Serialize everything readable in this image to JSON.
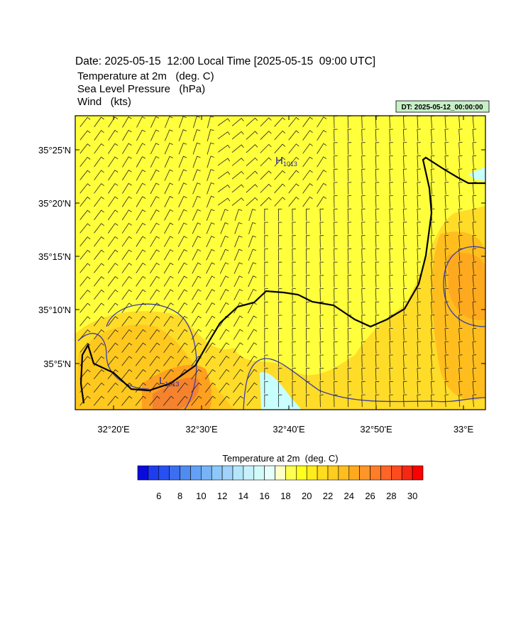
{
  "header": {
    "date": "Date: 2025-05-15  12:00 Local Time [2025-05-15  09:00 UTC]",
    "fields": [
      "Temperature at 2m   (deg. C)",
      "Sea Level Pressure   (hPa)",
      "Wind   (kts)"
    ],
    "dt": "DT: 2025-05-12_00:00:00"
  },
  "map": {
    "lat_labels": [
      "35°25'N",
      "35°20'N",
      "35°15'N",
      "35°10'N",
      "35°5'N"
    ],
    "lon_labels": [
      "32°20'E",
      "32°30'E",
      "32°40'E",
      "32°50'E",
      "33°E"
    ],
    "pressure_centers": [
      {
        "letter": "H",
        "value": "1013"
      },
      {
        "letter": "L",
        "value": "1013"
      }
    ]
  },
  "colorbar": {
    "title": "Temperature at 2m  (deg. C)",
    "labels": [
      6,
      8,
      10,
      12,
      14,
      16,
      18,
      20,
      22,
      24,
      26,
      28,
      30
    ]
  }
}
